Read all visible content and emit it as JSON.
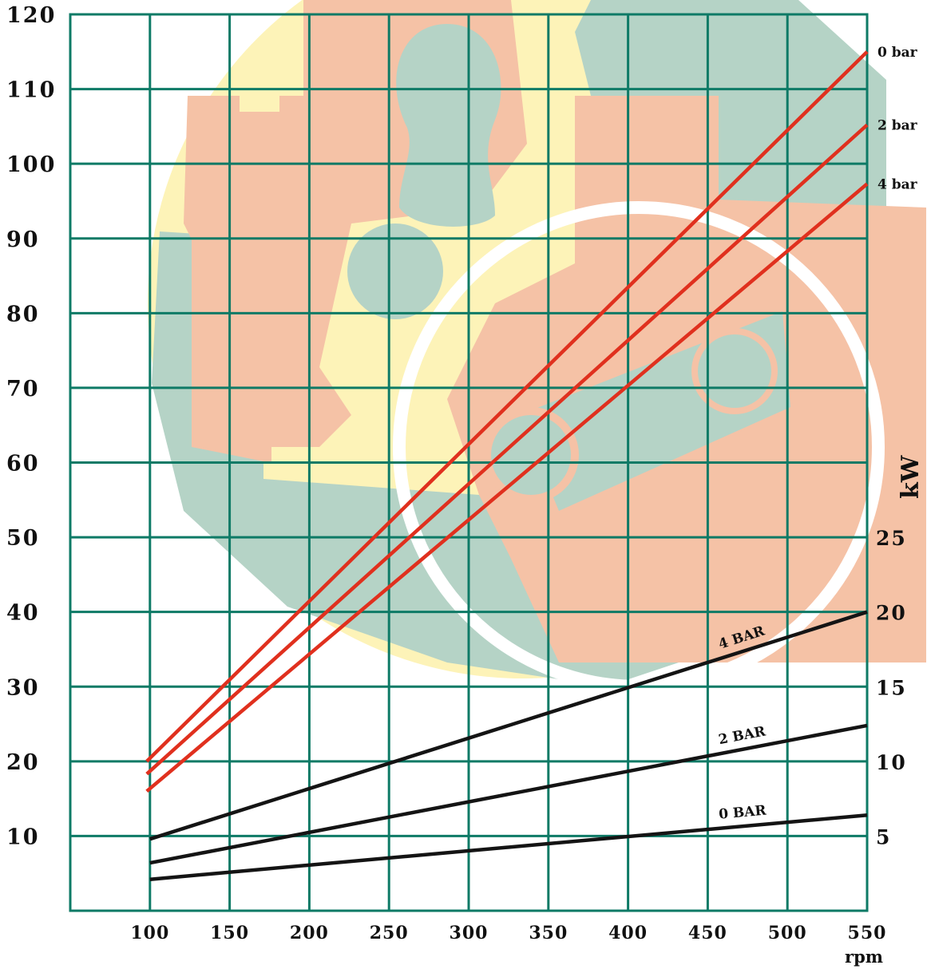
{
  "chart_data": {
    "type": "line",
    "xlabel": "rpm",
    "secondary_ylabel": "kW",
    "xlim": [
      50,
      550
    ],
    "ylim": [
      0,
      120
    ],
    "secondary_ylim": [
      0,
      60
    ],
    "x_ticks": [
      100,
      150,
      200,
      250,
      300,
      350,
      400,
      450,
      500,
      550
    ],
    "y_ticks": [
      10,
      20,
      30,
      40,
      50,
      60,
      70,
      80,
      90,
      100,
      110,
      120
    ],
    "secondary_y_ticks": [
      5,
      10,
      15,
      20,
      25
    ],
    "grid": true,
    "colors": {
      "grid": "#0e7a66",
      "red": "#e0301e",
      "black": "#141414"
    },
    "series": [
      {
        "name": "0 bar",
        "axis": "left",
        "color": "#e0301e",
        "x": [
          98,
          550
        ],
        "y": [
          20,
          115
        ]
      },
      {
        "name": "2 bar",
        "axis": "left",
        "color": "#e0301e",
        "x": [
          98,
          550
        ],
        "y": [
          18.3,
          105.2
        ]
      },
      {
        "name": "4 bar",
        "axis": "left",
        "color": "#e0301e",
        "x": [
          98,
          550
        ],
        "y": [
          16,
          97.3
        ]
      },
      {
        "name": "4 BAR",
        "axis": "right",
        "color": "#141414",
        "x": [
          100,
          550
        ],
        "y": [
          4.8,
          20
        ]
      },
      {
        "name": "2 BAR",
        "axis": "right",
        "color": "#141414",
        "x": [
          100,
          550
        ],
        "y": [
          3.2,
          12.4
        ]
      },
      {
        "name": "0 BAR",
        "axis": "right",
        "color": "#141414",
        "x": [
          100,
          550
        ],
        "y": [
          2.1,
          6.4
        ]
      }
    ]
  }
}
